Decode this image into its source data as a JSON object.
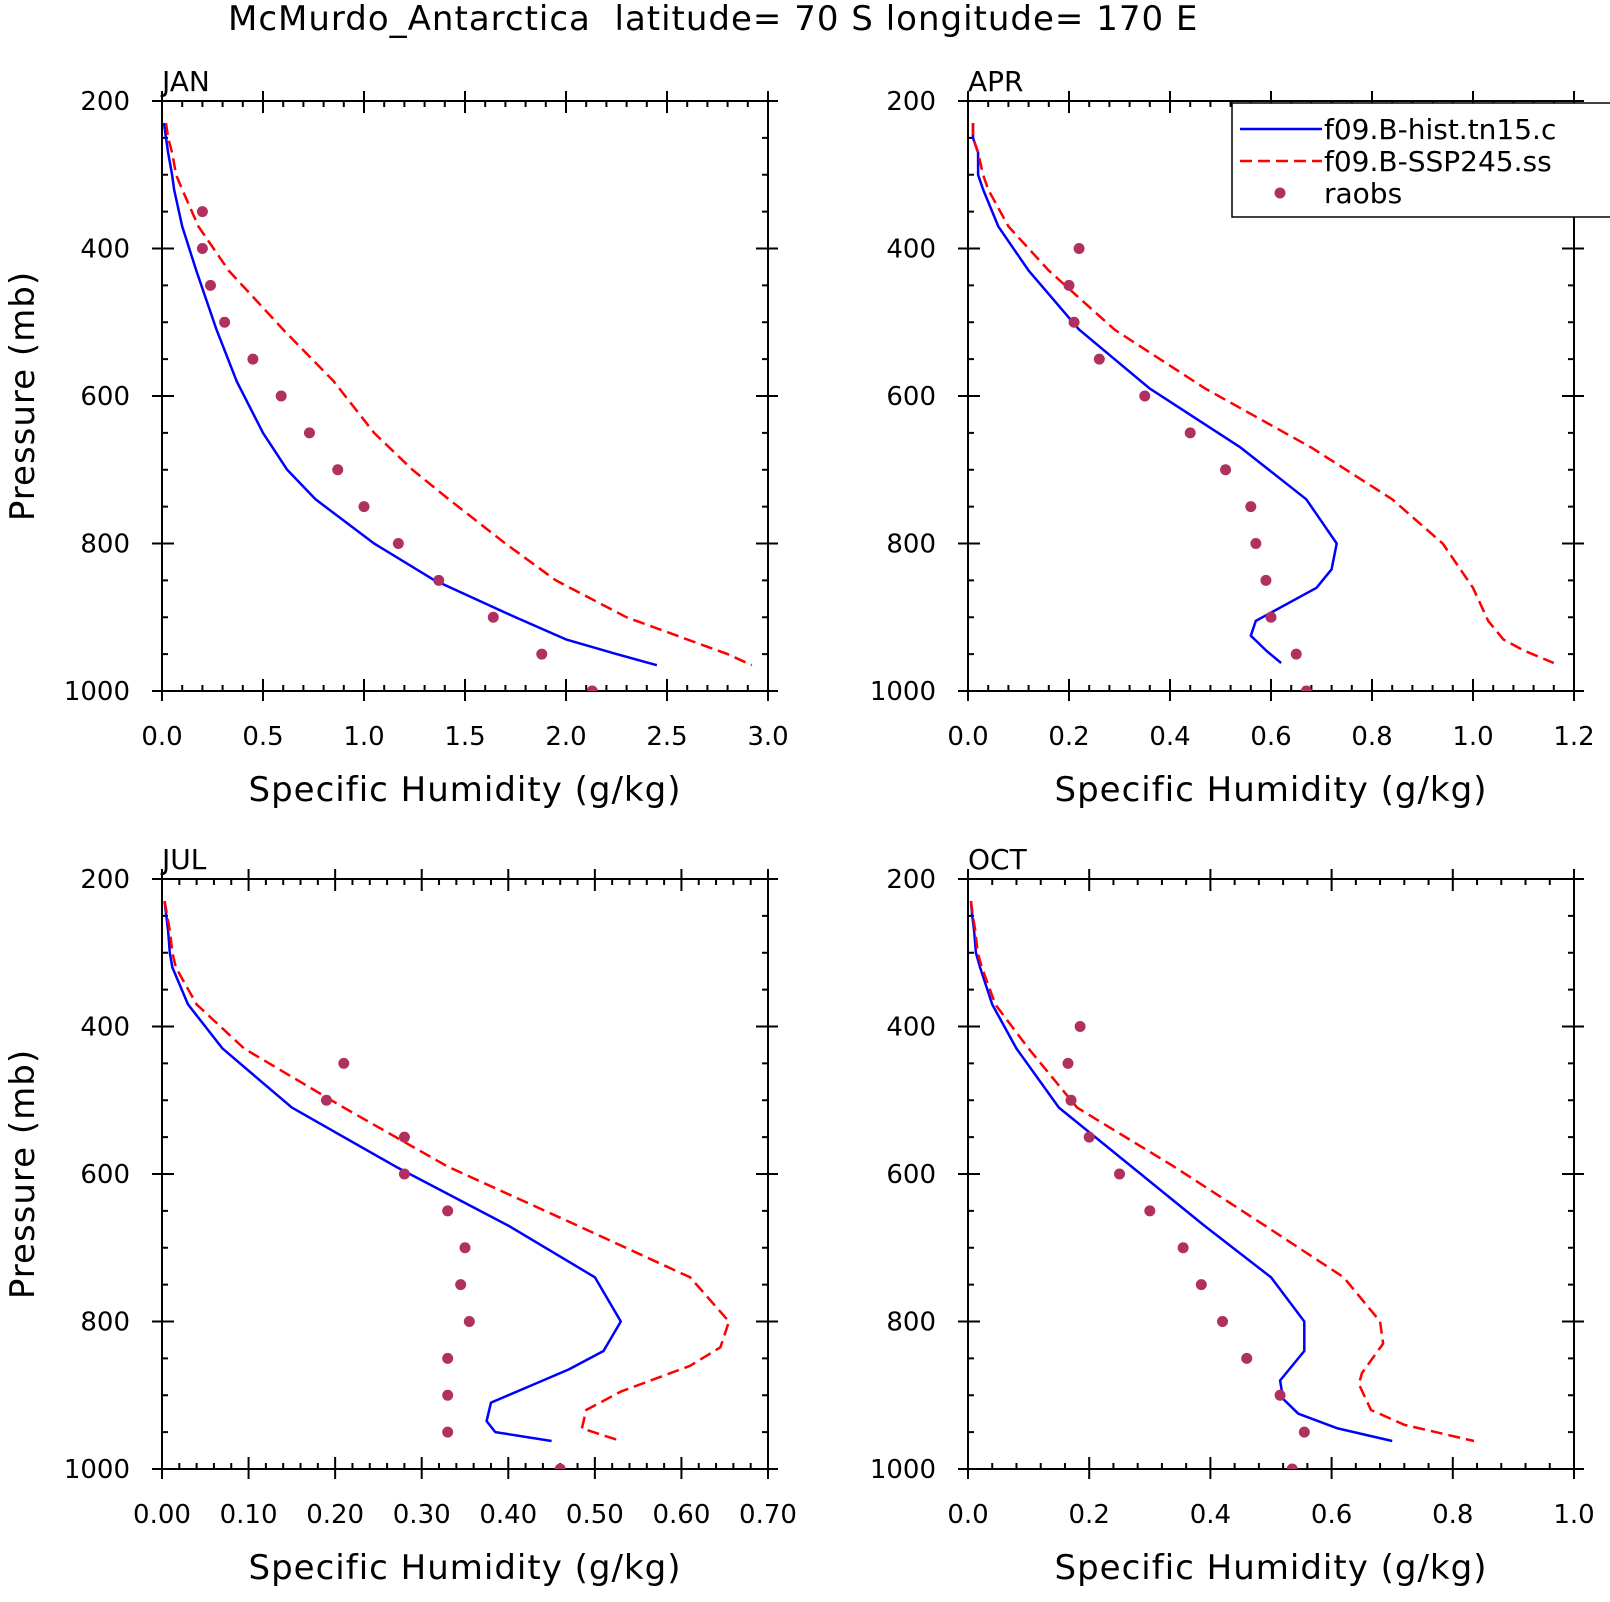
{
  "figure": {
    "title": "McMurdo_Antarctica  latitude= 70 S longitude= 170 E"
  },
  "legend": [
    {
      "label": "f09.B-hist.tn15.c",
      "color": "#0000ff",
      "style": "solid"
    },
    {
      "label": "f09.B-SSP245.ss",
      "color": "#ff0000",
      "style": "dashed"
    },
    {
      "label": "raobs",
      "color": "#b03060",
      "style": "dot"
    }
  ],
  "chart_data": [
    {
      "type": "line",
      "panel": "JAN",
      "xlabel": "Specific Humidity (g/kg)",
      "ylabel": "Pressure (mb)",
      "xlim": [
        0,
        3.0
      ],
      "ylim": [
        200,
        1000
      ],
      "y_inverted": true,
      "xticks": [
        "0.0",
        "0.5",
        "1.0",
        "1.5",
        "2.0",
        "2.5",
        "3.0"
      ],
      "yticks": [
        "200",
        "400",
        "600",
        "800",
        "1000"
      ],
      "series": [
        {
          "name": "f09.B-hist.tn15.c",
          "style": "solid",
          "color": "#0000ff",
          "points": [
            [
              0.01,
              230
            ],
            [
              0.02,
              250
            ],
            [
              0.03,
              270
            ],
            [
              0.05,
              300
            ],
            [
              0.06,
              320
            ],
            [
              0.1,
              370
            ],
            [
              0.17,
              430
            ],
            [
              0.27,
              510
            ],
            [
              0.37,
              580
            ],
            [
              0.5,
              650
            ],
            [
              0.62,
              700
            ],
            [
              0.76,
              740
            ],
            [
              1.05,
              800
            ],
            [
              1.35,
              850
            ],
            [
              1.75,
              900
            ],
            [
              2.0,
              930
            ],
            [
              2.25,
              950
            ],
            [
              2.45,
              965
            ]
          ]
        },
        {
          "name": "f09.B-SSP245.ss",
          "style": "dashed",
          "color": "#ff0000",
          "points": [
            [
              0.02,
              230
            ],
            [
              0.03,
              250
            ],
            [
              0.05,
              270
            ],
            [
              0.07,
              300
            ],
            [
              0.1,
              320
            ],
            [
              0.18,
              370
            ],
            [
              0.33,
              430
            ],
            [
              0.6,
              510
            ],
            [
              0.85,
              580
            ],
            [
              1.05,
              650
            ],
            [
              1.24,
              700
            ],
            [
              1.42,
              740
            ],
            [
              1.7,
              800
            ],
            [
              1.95,
              850
            ],
            [
              2.3,
              900
            ],
            [
              2.6,
              930
            ],
            [
              2.8,
              950
            ],
            [
              2.92,
              965
            ]
          ]
        },
        {
          "name": "raobs",
          "style": "dot",
          "color": "#b03060",
          "points": [
            [
              0.2,
              350
            ],
            [
              0.2,
              400
            ],
            [
              0.24,
              450
            ],
            [
              0.31,
              500
            ],
            [
              0.45,
              550
            ],
            [
              0.59,
              600
            ],
            [
              0.73,
              650
            ],
            [
              0.87,
              700
            ],
            [
              1.0,
              750
            ],
            [
              1.17,
              800
            ],
            [
              1.37,
              850
            ],
            [
              1.64,
              900
            ],
            [
              1.88,
              950
            ],
            [
              2.13,
              1000
            ]
          ]
        }
      ]
    },
    {
      "type": "line",
      "panel": "APR",
      "xlabel": "Specific Humidity (g/kg)",
      "ylabel": "",
      "xlim": [
        0,
        1.2
      ],
      "ylim": [
        200,
        1000
      ],
      "y_inverted": true,
      "xticks": [
        "0.0",
        "0.2",
        "0.4",
        "0.6",
        "0.8",
        "1.0",
        "1.2"
      ],
      "yticks": [
        "200",
        "400",
        "600",
        "800",
        "1000"
      ],
      "series": [
        {
          "name": "f09.B-hist.tn15.c",
          "style": "solid",
          "color": "#0000ff",
          "points": [
            [
              0.01,
              230
            ],
            [
              0.01,
              250
            ],
            [
              0.02,
              270
            ],
            [
              0.02,
              300
            ],
            [
              0.03,
              320
            ],
            [
              0.06,
              370
            ],
            [
              0.12,
              430
            ],
            [
              0.22,
              510
            ],
            [
              0.36,
              590
            ],
            [
              0.54,
              670
            ],
            [
              0.67,
              740
            ],
            [
              0.73,
              800
            ],
            [
              0.72,
              835
            ],
            [
              0.69,
              860
            ],
            [
              0.57,
              905
            ],
            [
              0.56,
              925
            ],
            [
              0.59,
              945
            ],
            [
              0.62,
              962
            ]
          ]
        },
        {
          "name": "f09.B-SSP245.ss",
          "style": "dashed",
          "color": "#ff0000",
          "points": [
            [
              0.01,
              230
            ],
            [
              0.01,
              250
            ],
            [
              0.02,
              270
            ],
            [
              0.03,
              300
            ],
            [
              0.04,
              320
            ],
            [
              0.08,
              370
            ],
            [
              0.16,
              430
            ],
            [
              0.29,
              510
            ],
            [
              0.47,
              590
            ],
            [
              0.68,
              670
            ],
            [
              0.84,
              740
            ],
            [
              0.94,
              800
            ],
            [
              1.0,
              860
            ],
            [
              1.03,
              905
            ],
            [
              1.06,
              930
            ],
            [
              1.1,
              945
            ],
            [
              1.16,
              962
            ]
          ]
        },
        {
          "name": "raobs",
          "style": "dot",
          "color": "#b03060",
          "points": [
            [
              0.22,
              400
            ],
            [
              0.2,
              450
            ],
            [
              0.21,
              500
            ],
            [
              0.26,
              550
            ],
            [
              0.35,
              600
            ],
            [
              0.44,
              650
            ],
            [
              0.51,
              700
            ],
            [
              0.56,
              750
            ],
            [
              0.57,
              800
            ],
            [
              0.59,
              850
            ],
            [
              0.6,
              900
            ],
            [
              0.65,
              950
            ],
            [
              0.67,
              1000
            ]
          ]
        }
      ]
    },
    {
      "type": "line",
      "panel": "JUL",
      "xlabel": "Specific Humidity (g/kg)",
      "ylabel": "Pressure (mb)",
      "xlim": [
        0,
        0.7
      ],
      "ylim": [
        200,
        1000
      ],
      "y_inverted": true,
      "xticks": [
        "0.00",
        "0.10",
        "0.20",
        "0.30",
        "0.40",
        "0.50",
        "0.60",
        "0.70"
      ],
      "yticks": [
        "200",
        "400",
        "600",
        "800",
        "1000"
      ],
      "series": [
        {
          "name": "f09.B-hist.tn15.c",
          "style": "solid",
          "color": "#0000ff",
          "points": [
            [
              0.003,
              230
            ],
            [
              0.005,
              250
            ],
            [
              0.007,
              270
            ],
            [
              0.009,
              300
            ],
            [
              0.012,
              320
            ],
            [
              0.03,
              370
            ],
            [
              0.07,
              430
            ],
            [
              0.15,
              510
            ],
            [
              0.27,
              590
            ],
            [
              0.4,
              670
            ],
            [
              0.5,
              740
            ],
            [
              0.53,
              800
            ],
            [
              0.51,
              840
            ],
            [
              0.47,
              865
            ],
            [
              0.42,
              890
            ],
            [
              0.38,
              910
            ],
            [
              0.375,
              935
            ],
            [
              0.385,
              950
            ],
            [
              0.45,
              962
            ]
          ]
        },
        {
          "name": "f09.B-SSP245.ss",
          "style": "dashed",
          "color": "#ff0000",
          "points": [
            [
              0.003,
              230
            ],
            [
              0.006,
              250
            ],
            [
              0.009,
              270
            ],
            [
              0.012,
              300
            ],
            [
              0.016,
              320
            ],
            [
              0.04,
              370
            ],
            [
              0.095,
              430
            ],
            [
              0.21,
              510
            ],
            [
              0.33,
              590
            ],
            [
              0.48,
              670
            ],
            [
              0.61,
              740
            ],
            [
              0.655,
              800
            ],
            [
              0.645,
              835
            ],
            [
              0.61,
              860
            ],
            [
              0.53,
              895
            ],
            [
              0.49,
              920
            ],
            [
              0.485,
              945
            ],
            [
              0.53,
              962
            ]
          ]
        },
        {
          "name": "raobs",
          "style": "dot",
          "color": "#b03060",
          "points": [
            [
              0.21,
              450
            ],
            [
              0.19,
              500
            ],
            [
              0.28,
              550
            ],
            [
              0.28,
              600
            ],
            [
              0.33,
              650
            ],
            [
              0.35,
              700
            ],
            [
              0.345,
              750
            ],
            [
              0.355,
              800
            ],
            [
              0.33,
              850
            ],
            [
              0.33,
              900
            ],
            [
              0.33,
              950
            ],
            [
              0.46,
              1000
            ]
          ]
        }
      ]
    },
    {
      "type": "line",
      "panel": "OCT",
      "xlabel": "Specific Humidity (g/kg)",
      "ylabel": "",
      "xlim": [
        0,
        1.0
      ],
      "ylim": [
        200,
        1000
      ],
      "y_inverted": true,
      "xticks": [
        "0.0",
        "0.2",
        "0.4",
        "0.6",
        "0.8",
        "1.0"
      ],
      "yticks": [
        "200",
        "400",
        "600",
        "800",
        "1000"
      ],
      "series": [
        {
          "name": "f09.B-hist.tn15.c",
          "style": "solid",
          "color": "#0000ff",
          "points": [
            [
              0.005,
              230
            ],
            [
              0.007,
              250
            ],
            [
              0.01,
              270
            ],
            [
              0.013,
              300
            ],
            [
              0.02,
              320
            ],
            [
              0.04,
              370
            ],
            [
              0.08,
              430
            ],
            [
              0.15,
              510
            ],
            [
              0.27,
              590
            ],
            [
              0.39,
              670
            ],
            [
              0.5,
              740
            ],
            [
              0.555,
              800
            ],
            [
              0.555,
              840
            ],
            [
              0.515,
              880
            ],
            [
              0.52,
              905
            ],
            [
              0.545,
              925
            ],
            [
              0.61,
              945
            ],
            [
              0.7,
              962
            ]
          ]
        },
        {
          "name": "f09.B-SSP245.ss",
          "style": "dashed",
          "color": "#ff0000",
          "points": [
            [
              0.005,
              230
            ],
            [
              0.008,
              250
            ],
            [
              0.012,
              270
            ],
            [
              0.016,
              300
            ],
            [
              0.023,
              320
            ],
            [
              0.045,
              370
            ],
            [
              0.1,
              430
            ],
            [
              0.18,
              510
            ],
            [
              0.34,
              590
            ],
            [
              0.49,
              670
            ],
            [
              0.62,
              740
            ],
            [
              0.68,
              800
            ],
            [
              0.685,
              830
            ],
            [
              0.65,
              870
            ],
            [
              0.645,
              885
            ],
            [
              0.665,
              920
            ],
            [
              0.72,
              940
            ],
            [
              0.835,
              962
            ]
          ]
        },
        {
          "name": "raobs",
          "style": "dot",
          "color": "#b03060",
          "points": [
            [
              0.185,
              400
            ],
            [
              0.165,
              450
            ],
            [
              0.17,
              500
            ],
            [
              0.2,
              550
            ],
            [
              0.25,
              600
            ],
            [
              0.3,
              650
            ],
            [
              0.355,
              700
            ],
            [
              0.385,
              750
            ],
            [
              0.42,
              800
            ],
            [
              0.46,
              850
            ],
            [
              0.515,
              900
            ],
            [
              0.555,
              950
            ],
            [
              0.535,
              1000
            ]
          ]
        }
      ]
    }
  ]
}
